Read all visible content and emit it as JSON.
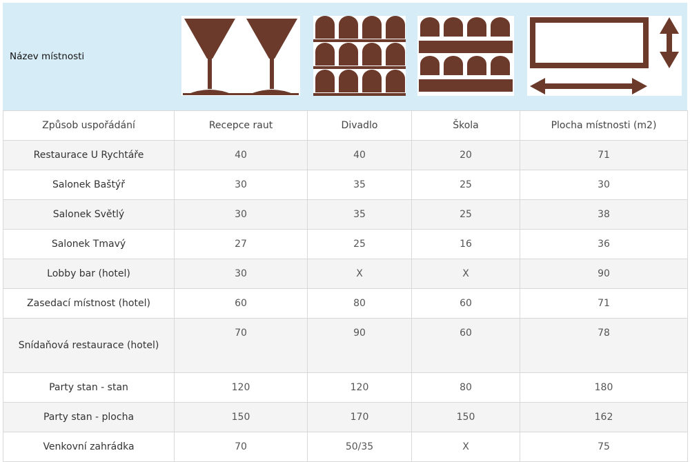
{
  "header": {
    "label": "Název místnosti",
    "icons": [
      "cocktail-glasses-icon",
      "theatre-seating-icon",
      "school-seating-icon",
      "room-area-icon"
    ],
    "brand_color": "#6b3a2a"
  },
  "table": {
    "columns": [
      "Způsob uspořádání",
      "Recepce raut",
      "Divadlo",
      "Škola",
      "Plocha místnosti (m2)"
    ],
    "rows": [
      {
        "name": "Restaurace U Rychtáře",
        "recepce": "40",
        "divadlo": "40",
        "skola": "20",
        "plocha": "71"
      },
      {
        "name": "Salonek Baštýř",
        "recepce": "30",
        "divadlo": "35",
        "skola": "25",
        "plocha": "30"
      },
      {
        "name": "Salonek Světlý",
        "recepce": "30",
        "divadlo": "35",
        "skola": "25",
        "plocha": "38"
      },
      {
        "name": "Salonek Tmavý",
        "recepce": "27",
        "divadlo": "25",
        "skola": "16",
        "plocha": "36"
      },
      {
        "name": "Lobby bar (hotel)",
        "recepce": "30",
        "divadlo": "X",
        "skola": "X",
        "plocha": "90"
      },
      {
        "name": "Zasedací místnost (hotel)",
        "recepce": "60",
        "divadlo": "80",
        "skola": "60",
        "plocha": "71"
      },
      {
        "name": "Snídaňová restaurace (hotel)",
        "recepce": "70",
        "divadlo": "90",
        "skola": "60",
        "plocha": "78"
      },
      {
        "name": "Party stan - stan",
        "recepce": "120",
        "divadlo": "120",
        "skola": "80",
        "plocha": "180"
      },
      {
        "name": "Party stan - plocha",
        "recepce": "150",
        "divadlo": "170",
        "skola": "150",
        "plocha": "162"
      },
      {
        "name": "Venkovní zahrádka",
        "recepce": "70",
        "divadlo": "50/35",
        "skola": "X",
        "plocha": "75"
      }
    ]
  }
}
